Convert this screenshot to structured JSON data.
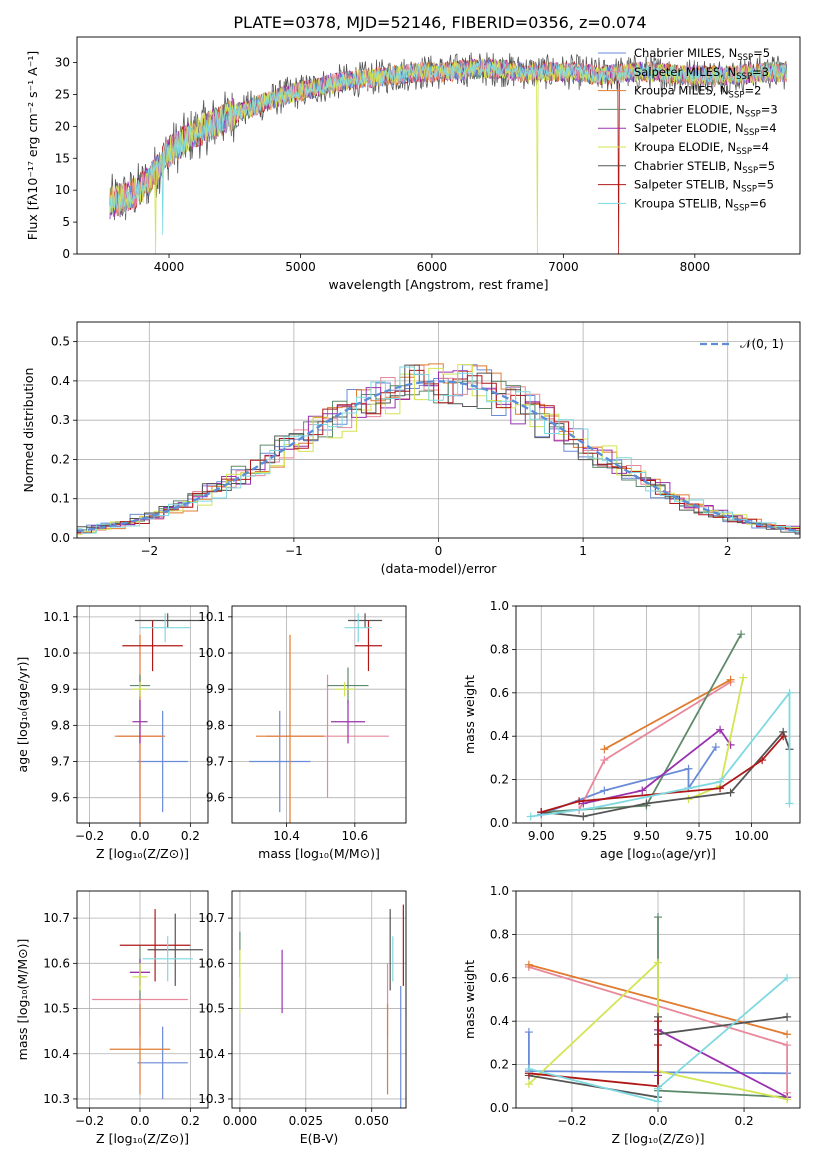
{
  "colors": {
    "chabrier_miles": "#6a8bd8",
    "salpeter_miles": "#e8889a",
    "kroupa_miles": "#e07b30",
    "chabrier_elodie": "#5f8a6a",
    "salpeter_elodie": "#9a30b0",
    "kroupa_elodie": "#d4e452",
    "chabrier_stelib": "#555555",
    "salpeter_stelib": "#b01818",
    "kroupa_stelib": "#7fd9e0"
  },
  "chart_data": [
    {
      "id": "spectrum",
      "type": "line",
      "title": "PLATE=0378, MJD=52146, FIBERID=0356, z=0.074",
      "xlabel": "wavelength [Angstrom, rest frame]",
      "ylabel": "Flux [fλ10⁻¹⁷ erg cm⁻² s⁻¹ A⁻¹]",
      "xlim": [
        3300,
        8800
      ],
      "ylim": [
        0,
        34
      ],
      "xticks": [
        "4000",
        "5000",
        "6000",
        "7000",
        "8000"
      ],
      "xtick_values": [
        4000,
        5000,
        6000,
        7000,
        8000
      ],
      "yticks": [
        "0",
        "5",
        "10",
        "15",
        "20",
        "25",
        "30"
      ],
      "ytick_values": [
        0,
        5,
        10,
        15,
        20,
        25,
        30
      ],
      "continuum": {
        "x": [
          3550,
          3700,
          3800,
          3900,
          4000,
          4100,
          4200,
          4300,
          4500,
          4700,
          4900,
          5100,
          5300,
          5500,
          5700,
          5900,
          6100,
          6300,
          6500,
          6700,
          6900,
          7100,
          7300,
          7500,
          7700,
          7900,
          8100,
          8300,
          8500,
          8700
        ],
        "y": [
          8,
          9,
          10.5,
          13,
          16,
          17.5,
          19,
          20,
          22,
          23.5,
          25,
          26,
          27,
          27.5,
          28,
          28.5,
          28.5,
          29,
          29,
          28.5,
          28.5,
          28.5,
          28,
          28.5,
          28.5,
          28,
          28,
          28,
          28.5,
          28.5
        ]
      },
      "legend": [
        {
          "main": "Chabrier MILES, N",
          "sub": "SSP",
          "tail": "=5",
          "color_key": "chabrier_miles"
        },
        {
          "main": "Salpeter MILES, N",
          "sub": "SSP",
          "tail": "=3",
          "color_key": "salpeter_miles"
        },
        {
          "main": "Kroupa MILES, N",
          "sub": "SSP",
          "tail": "=2",
          "color_key": "kroupa_miles"
        },
        {
          "main": "Chabrier ELODIE, N",
          "sub": "SSP",
          "tail": "=3",
          "color_key": "chabrier_elodie"
        },
        {
          "main": "Salpeter ELODIE, N",
          "sub": "SSP",
          "tail": "=4",
          "color_key": "salpeter_elodie"
        },
        {
          "main": "Kroupa ELODIE, N",
          "sub": "SSP",
          "tail": "=4",
          "color_key": "kroupa_elodie"
        },
        {
          "main": "Chabrier STELIB, N",
          "sub": "SSP",
          "tail": "=5",
          "color_key": "chabrier_stelib"
        },
        {
          "main": "Salpeter STELIB, N",
          "sub": "SSP",
          "tail": "=5",
          "color_key": "salpeter_stelib"
        },
        {
          "main": "Kroupa STELIB, N",
          "sub": "SSP",
          "tail": "=6",
          "color_key": "kroupa_stelib"
        }
      ]
    },
    {
      "id": "residuals",
      "type": "histogram",
      "xlabel": "(data-model)/error",
      "ylabel": "Normed distribution",
      "xlim": [
        -2.5,
        2.5
      ],
      "ylim": [
        0,
        0.55
      ],
      "xticks": [
        "−2",
        "−1",
        "0",
        "1",
        "2"
      ],
      "xtick_values": [
        -2,
        -1,
        0,
        1,
        2
      ],
      "yticks": [
        "0.0",
        "0.1",
        "0.2",
        "0.3",
        "0.4",
        "0.5"
      ],
      "ytick_values": [
        0,
        0.1,
        0.2,
        0.3,
        0.4,
        0.5
      ],
      "bin_width": 0.1,
      "legend_label": "𝒩(0, 1)",
      "gaussian": {
        "mean": 0,
        "sigma": 1
      }
    },
    {
      "id": "age-vs-Z",
      "type": "errorbar",
      "xlabel": "Z [log₁₀(Z/Z⊙)]",
      "ylabel": "age [log₁₀(age/yr)]",
      "xlim": [
        -0.25,
        0.27
      ],
      "ylim": [
        9.53,
        10.13
      ],
      "xticks": [
        "−0.2",
        "0.0",
        "0.2"
      ],
      "xtick_values": [
        -0.2,
        0.0,
        0.2
      ],
      "yticks": [
        "9.6",
        "9.7",
        "9.8",
        "9.9",
        "10.0",
        "10.1"
      ],
      "ytick_values": [
        9.6,
        9.7,
        9.8,
        9.9,
        10.0,
        10.1
      ],
      "points": [
        {
          "c": "chabrier_miles",
          "x": 0.09,
          "xe": 0.1,
          "y": 9.7,
          "ye": 0.14
        },
        {
          "c": "salpeter_miles",
          "x": 0.0,
          "xe": 0.09,
          "y": 9.77,
          "ye": 0.17
        },
        {
          "c": "kroupa_miles",
          "x": 0.0,
          "xe": 0.1,
          "y": 9.77,
          "ye": 0.28
        },
        {
          "c": "chabrier_elodie",
          "x": 0.0,
          "xe": 0.04,
          "y": 9.91,
          "ye": 0.03
        },
        {
          "c": "salpeter_elodie",
          "x": 0.0,
          "xe": 0.03,
          "y": 9.81,
          "ye": 0.06
        },
        {
          "c": "kroupa_elodie",
          "x": 0.0,
          "xe": 0.03,
          "y": 9.9,
          "ye": 0.02
        },
        {
          "c": "chabrier_stelib",
          "x": 0.11,
          "xe": 0.13,
          "y": 10.09,
          "ye": 0.02
        },
        {
          "c": "salpeter_stelib",
          "x": 0.05,
          "xe": 0.12,
          "y": 10.02,
          "ye": 0.07
        },
        {
          "c": "kroupa_stelib",
          "x": 0.1,
          "xe": 0.1,
          "y": 10.07,
          "ye": 0.04
        }
      ]
    },
    {
      "id": "age-vs-mass",
      "type": "errorbar",
      "xlabel": "mass [log₁₀(M/M⊙)]",
      "ylabel": "",
      "xlim": [
        10.24,
        10.75
      ],
      "ylim": [
        9.53,
        10.13
      ],
      "xticks": [
        "10.4",
        "10.6"
      ],
      "xtick_values": [
        10.4,
        10.6
      ],
      "yticks": [
        "9.6",
        "9.7",
        "9.8",
        "9.9",
        "10.0",
        "10.1"
      ],
      "ytick_values": [
        9.6,
        9.7,
        9.8,
        9.9,
        10.0,
        10.1
      ],
      "points": [
        {
          "c": "chabrier_miles",
          "x": 10.38,
          "xe": 0.09,
          "y": 9.7,
          "ye": 0.14
        },
        {
          "c": "salpeter_miles",
          "x": 10.52,
          "xe": 0.18,
          "y": 9.77,
          "ye": 0.17
        },
        {
          "c": "kroupa_miles",
          "x": 10.41,
          "xe": 0.1,
          "y": 9.77,
          "ye": 0.28
        },
        {
          "c": "chabrier_elodie",
          "x": 10.58,
          "xe": 0.06,
          "y": 9.91,
          "ye": 0.05
        },
        {
          "c": "salpeter_elodie",
          "x": 10.58,
          "xe": 0.05,
          "y": 9.81,
          "ye": 0.06
        },
        {
          "c": "kroupa_elodie",
          "x": 10.57,
          "xe": 0.03,
          "y": 9.9,
          "ye": 0.02
        },
        {
          "c": "chabrier_stelib",
          "x": 10.63,
          "xe": 0.05,
          "y": 10.09,
          "ye": 0.02
        },
        {
          "c": "salpeter_stelib",
          "x": 10.64,
          "xe": 0.04,
          "y": 10.02,
          "ye": 0.07
        },
        {
          "c": "kroupa_stelib",
          "x": 10.61,
          "xe": 0.04,
          "y": 10.07,
          "ye": 0.04
        }
      ]
    },
    {
      "id": "weight-vs-age",
      "type": "line",
      "xlabel": "age [log₁₀(age/yr)]",
      "ylabel": "mass weight",
      "xlim": [
        8.88,
        10.23
      ],
      "ylim": [
        0,
        1
      ],
      "xticks": [
        "9.00",
        "9.25",
        "9.50",
        "9.75",
        "10.00"
      ],
      "xtick_values": [
        9.0,
        9.25,
        9.5,
        9.75,
        10.0
      ],
      "yticks": [
        "0.0",
        "0.2",
        "0.4",
        "0.6",
        "0.8",
        "1.0"
      ],
      "ytick_values": [
        0,
        0.2,
        0.4,
        0.6,
        0.8,
        1.0
      ],
      "series": [
        {
          "c": "chabrier_miles",
          "x": [
            9.0,
            9.3,
            9.7,
            9.7,
            9.83
          ],
          "y": [
            0.04,
            0.15,
            0.25,
            0.16,
            0.35
          ]
        },
        {
          "c": "salpeter_miles",
          "x": [
            9.18,
            9.3,
            9.9
          ],
          "y": [
            0.06,
            0.29,
            0.65
          ]
        },
        {
          "c": "kroupa_miles",
          "x": [
            9.3,
            9.9
          ],
          "y": [
            0.34,
            0.66
          ]
        },
        {
          "c": "chabrier_elodie",
          "x": [
            9.0,
            9.5,
            9.95
          ],
          "y": [
            0.05,
            0.08,
            0.87
          ]
        },
        {
          "c": "salpeter_elodie",
          "x": [
            9.2,
            9.48,
            9.85,
            9.9
          ],
          "y": [
            0.09,
            0.15,
            0.43,
            0.36
          ]
        },
        {
          "c": "kroupa_elodie",
          "x": [
            9.7,
            9.85,
            9.96
          ],
          "y": [
            0.11,
            0.17,
            0.67
          ]
        },
        {
          "c": "chabrier_stelib",
          "x": [
            9.0,
            9.2,
            9.5,
            9.9,
            10.15,
            10.18
          ],
          "y": [
            0.05,
            0.03,
            0.09,
            0.14,
            0.42,
            0.34
          ]
        },
        {
          "c": "salpeter_stelib",
          "x": [
            9.0,
            9.18,
            9.85,
            10.05,
            10.15
          ],
          "y": [
            0.05,
            0.1,
            0.16,
            0.29,
            0.4
          ]
        },
        {
          "c": "kroupa_stelib",
          "x": [
            8.95,
            9.25,
            9.85,
            10.18,
            10.18
          ],
          "y": [
            0.03,
            0.07,
            0.19,
            0.6,
            0.09
          ]
        }
      ]
    },
    {
      "id": "mass-vs-Z",
      "type": "errorbar",
      "xlabel": "Z [log₁₀(Z/Z⊙)]",
      "ylabel": "mass [log₁₀(M/M⊙)]",
      "xlim": [
        -0.25,
        0.27
      ],
      "ylim": [
        10.28,
        10.76
      ],
      "xticks": [
        "−0.2",
        "0.0",
        "0.2"
      ],
      "xtick_values": [
        -0.2,
        0.0,
        0.2
      ],
      "yticks": [
        "10.3",
        "10.4",
        "10.5",
        "10.6",
        "10.7"
      ],
      "ytick_values": [
        10.3,
        10.4,
        10.5,
        10.6,
        10.7
      ],
      "points": [
        {
          "c": "chabrier_miles",
          "x": 0.09,
          "xe": 0.1,
          "y": 10.38,
          "ye": 0.08
        },
        {
          "c": "salpeter_miles",
          "x": 0.0,
          "xe": 0.19,
          "y": 10.52,
          "ye": 0.08
        },
        {
          "c": "kroupa_miles",
          "x": 0.0,
          "xe": 0.12,
          "y": 10.41,
          "ye": 0.1
        },
        {
          "c": "chabrier_elodie",
          "x": 0.0,
          "xe": 0.04,
          "y": 10.58,
          "ye": 0.06
        },
        {
          "c": "salpeter_elodie",
          "x": 0.0,
          "xe": 0.04,
          "y": 10.58,
          "ye": 0.03
        },
        {
          "c": "kroupa_elodie",
          "x": 0.0,
          "xe": 0.03,
          "y": 10.57,
          "ye": 0.03
        },
        {
          "c": "chabrier_stelib",
          "x": 0.14,
          "xe": 0.11,
          "y": 10.63,
          "ye": 0.08
        },
        {
          "c": "salpeter_stelib",
          "x": 0.06,
          "xe": 0.14,
          "y": 10.64,
          "ye": 0.08
        },
        {
          "c": "kroupa_stelib",
          "x": 0.11,
          "xe": 0.1,
          "y": 10.61,
          "ye": 0.05
        }
      ]
    },
    {
      "id": "mass-vs-ebv",
      "type": "errorbar",
      "xlabel": "E(B-V)",
      "ylabel": "",
      "xlim": [
        -0.003,
        0.063
      ],
      "ylim": [
        10.28,
        10.76
      ],
      "xticks": [
        "0.000",
        "0.025",
        "0.050"
      ],
      "xtick_values": [
        0.0,
        0.025,
        0.05
      ],
      "yticks": [
        "10.3",
        "10.4",
        "10.5",
        "10.6",
        "10.7"
      ],
      "ytick_values": [
        10.3,
        10.4,
        10.5,
        10.6,
        10.7
      ],
      "points": [
        {
          "c": "chabrier_miles",
          "x": 0.061,
          "xe": 0,
          "y": 10.4,
          "ye": 0.15
        },
        {
          "c": "salpeter_miles",
          "x": 0.056,
          "xe": 0,
          "y": 10.52,
          "ye": 0.08
        },
        {
          "c": "kroupa_miles",
          "x": 0.056,
          "xe": 0,
          "y": 10.41,
          "ye": 0.1
        },
        {
          "c": "chabrier_elodie",
          "x": 0.0,
          "xe": 0,
          "y": 10.62,
          "ye": 0.05
        },
        {
          "c": "salpeter_elodie",
          "x": 0.016,
          "xe": 0,
          "y": 10.56,
          "ye": 0.07
        },
        {
          "c": "kroupa_elodie",
          "x": 0.0,
          "xe": 0,
          "y": 10.56,
          "ye": 0.07
        },
        {
          "c": "chabrier_stelib",
          "x": 0.057,
          "xe": 0,
          "y": 10.63,
          "ye": 0.09
        },
        {
          "c": "salpeter_stelib",
          "x": 0.062,
          "xe": 0,
          "y": 10.64,
          "ye": 0.09
        },
        {
          "c": "kroupa_stelib",
          "x": 0.058,
          "xe": 0,
          "y": 10.61,
          "ye": 0.05
        }
      ]
    },
    {
      "id": "weight-vs-Z",
      "type": "line",
      "xlabel": "Z [log₁₀(Z/Z⊙)]",
      "ylabel": "mass weight",
      "xlim": [
        -0.33,
        0.33
      ],
      "ylim": [
        0,
        1
      ],
      "xticks": [
        "−0.2",
        "0.0",
        "0.2"
      ],
      "xtick_values": [
        -0.2,
        0.0,
        0.2
      ],
      "yticks": [
        "0.0",
        "0.2",
        "0.4",
        "0.6",
        "0.8",
        "1.0"
      ],
      "ytick_values": [
        0,
        0.2,
        0.4,
        0.6,
        0.8,
        1.0
      ],
      "series": [
        {
          "c": "chabrier_miles",
          "x": [
            -0.3,
            -0.3,
            -0.3,
            0.3
          ],
          "y": [
            0.35,
            0.17,
            0.17,
            0.16
          ]
        },
        {
          "c": "salpeter_miles",
          "x": [
            -0.3,
            0.3,
            0.3
          ],
          "y": [
            0.65,
            0.29,
            0.07
          ]
        },
        {
          "c": "kroupa_miles",
          "x": [
            -0.3,
            0.3
          ],
          "y": [
            0.66,
            0.34
          ]
        },
        {
          "c": "chabrier_elodie",
          "x": [
            0.0,
            0.0,
            0.0,
            0.3
          ],
          "y": [
            0.88,
            0.05,
            0.08,
            0.05
          ]
        },
        {
          "c": "salpeter_elodie",
          "x": [
            0.0,
            0.0,
            0.3,
            0.3
          ],
          "y": [
            0.15,
            0.36,
            0.05,
            0.05
          ]
        },
        {
          "c": "kroupa_elodie",
          "x": [
            -0.3,
            0.0,
            0.0,
            0.3
          ],
          "y": [
            0.11,
            0.67,
            0.17,
            0.04
          ]
        },
        {
          "c": "chabrier_stelib",
          "x": [
            -0.3,
            0.0,
            0.0,
            0.0,
            0.3
          ],
          "y": [
            0.15,
            0.05,
            0.42,
            0.34,
            0.42
          ]
        },
        {
          "c": "salpeter_stelib",
          "x": [
            -0.3,
            0.0,
            0.0,
            0.0
          ],
          "y": [
            0.16,
            0.1,
            0.4,
            0.29
          ]
        },
        {
          "c": "kroupa_stelib",
          "x": [
            -0.3,
            0.0,
            0.0,
            0.3
          ],
          "y": [
            0.18,
            0.03,
            0.09,
            0.6
          ]
        }
      ]
    }
  ]
}
